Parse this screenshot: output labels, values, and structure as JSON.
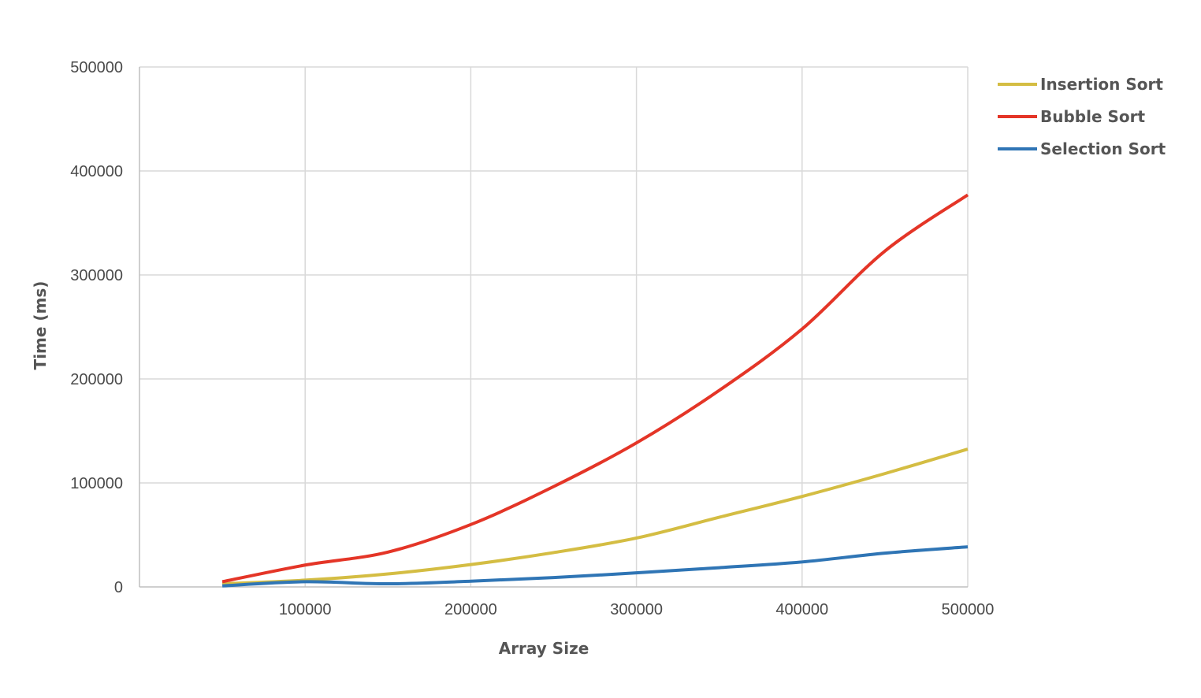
{
  "chart_data": {
    "type": "line",
    "title": "",
    "xlabel": "Array Size",
    "ylabel": "Time (ms)",
    "xlim": [
      0,
      500000
    ],
    "ylim": [
      0,
      500000
    ],
    "grid": true,
    "legend_position": "right",
    "x_ticks": [
      {
        "value": 100000,
        "label": "100000"
      },
      {
        "value": 200000,
        "label": "200000"
      },
      {
        "value": 300000,
        "label": "300000"
      },
      {
        "value": 400000,
        "label": "400000"
      },
      {
        "value": 500000,
        "label": "500000"
      }
    ],
    "y_ticks": [
      {
        "value": 0,
        "label": "0"
      },
      {
        "value": 100000,
        "label": "100000"
      },
      {
        "value": 200000,
        "label": "200000"
      },
      {
        "value": 300000,
        "label": "300000"
      },
      {
        "value": 400000,
        "label": "400000"
      },
      {
        "value": 500000,
        "label": "500000"
      }
    ],
    "x": [
      50000,
      100000,
      150000,
      200000,
      250000,
      300000,
      350000,
      400000,
      450000,
      500000
    ],
    "series": [
      {
        "name": "Insertion Sort",
        "color": "#d4bd43",
        "values": [
          3000,
          6500,
          12500,
          21500,
          33000,
          47000,
          67000,
          87000,
          109000,
          132500
        ]
      },
      {
        "name": "Bubble Sort",
        "color": "#e43527",
        "values": [
          5000,
          21000,
          33500,
          60000,
          96500,
          138500,
          189000,
          248000,
          323000,
          377000
        ]
      },
      {
        "name": "Selection Sort",
        "color": "#2f75b5",
        "values": [
          1000,
          5000,
          3000,
          5500,
          9000,
          13500,
          18500,
          24000,
          32500,
          38500
        ]
      }
    ]
  }
}
